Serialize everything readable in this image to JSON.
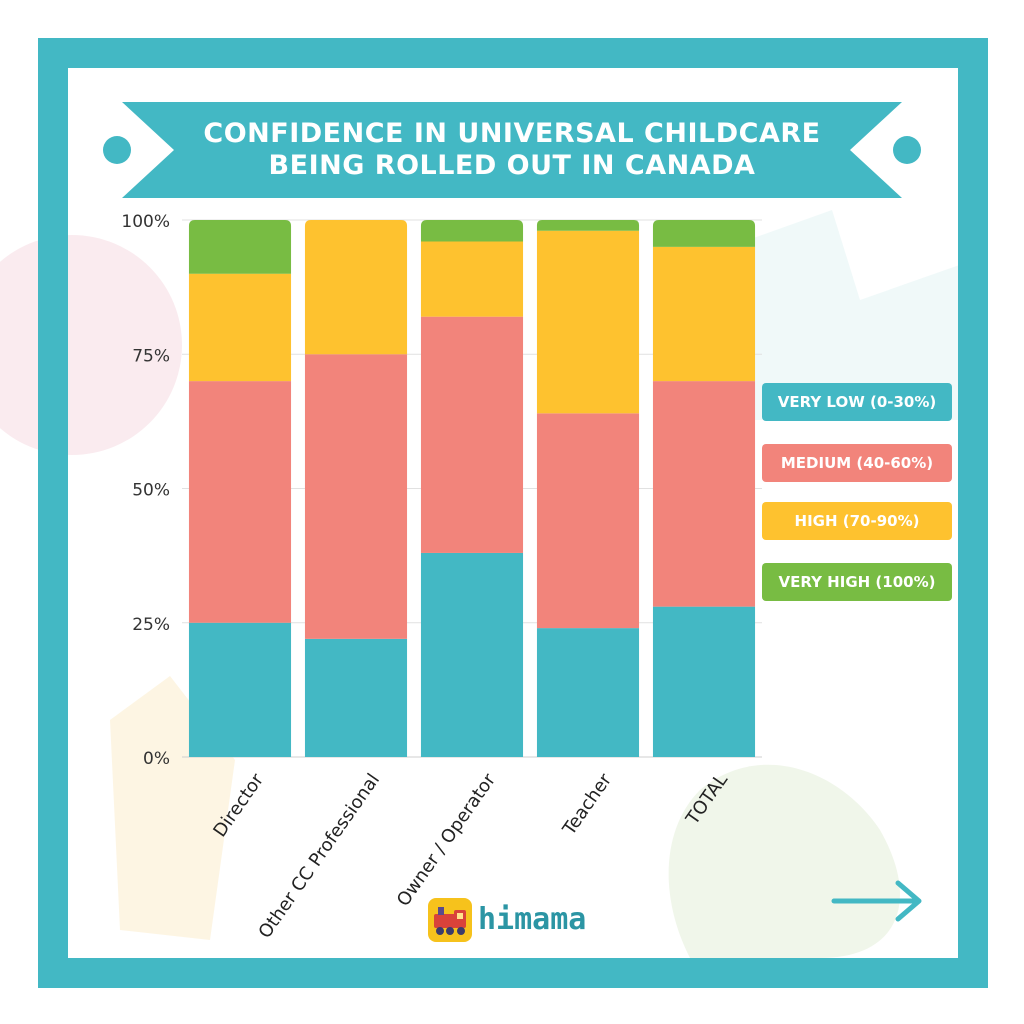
{
  "title": {
    "line1": "CONFIDENCE IN UNIVERSAL CHILDCARE",
    "line2": "BEING ROLLED OUT IN CANADA"
  },
  "colors": {
    "frame": "#43b8c4",
    "very_low": "#43b8c4",
    "medium": "#f2847b",
    "high": "#fec22f",
    "very_high": "#78bc43"
  },
  "legend": [
    {
      "label": "VERY LOW (0-30%)",
      "color": "#43b8c4"
    },
    {
      "label": "MEDIUM (40-60%)",
      "color": "#f2847b"
    },
    {
      "label": "HIGH (70-90%)",
      "color": "#fec22f"
    },
    {
      "label": "VERY HIGH (100%)",
      "color": "#78bc43"
    }
  ],
  "chart_data": {
    "type": "bar",
    "stacked": true,
    "categories": [
      "Director",
      "Other CC Professional",
      "Owner / Operator",
      "Teacher",
      "TOTAL"
    ],
    "series": [
      {
        "name": "VERY LOW (0-30%)",
        "color": "#43b8c4",
        "values": [
          25,
          22,
          38,
          24,
          28
        ]
      },
      {
        "name": "MEDIUM (40-60%)",
        "color": "#f2847b",
        "values": [
          45,
          53,
          44,
          40,
          42
        ]
      },
      {
        "name": "HIGH (70-90%)",
        "color": "#fec22f",
        "values": [
          20,
          25,
          14,
          34,
          25
        ]
      },
      {
        "name": "VERY HIGH (100%)",
        "color": "#78bc43",
        "values": [
          10,
          0,
          4,
          2,
          5
        ]
      }
    ],
    "ylim": [
      0,
      100
    ],
    "yticks": [
      "0%",
      "25%",
      "50%",
      "75%",
      "100%"
    ],
    "grid": true,
    "legend_position": "right"
  },
  "logo": {
    "text": "himama",
    "icon": "train-icon"
  },
  "nav": {
    "icon": "arrow-right-icon"
  }
}
